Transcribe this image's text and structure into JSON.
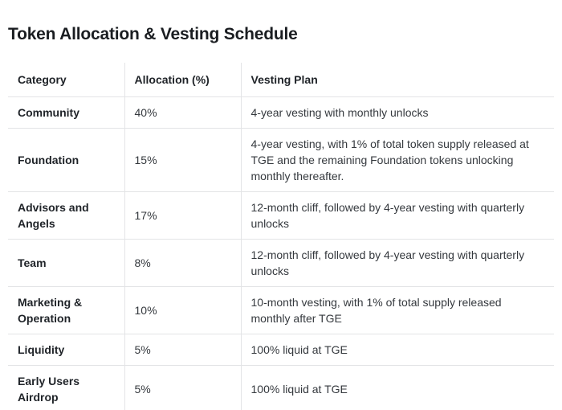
{
  "page": {
    "title": "Token Allocation & Vesting Schedule"
  },
  "table": {
    "columns": {
      "category": "Category",
      "allocation": "Allocation (%)",
      "vesting": "Vesting Plan"
    },
    "rows": [
      {
        "category": "Community",
        "allocation": "40%",
        "vesting": "4-year vesting with monthly unlocks"
      },
      {
        "category": "Foundation",
        "allocation": "15%",
        "vesting": "4-year vesting, with 1% of total token supply released at TGE and the remaining Foundation tokens unlocking monthly thereafter."
      },
      {
        "category": "Advisors and Angels",
        "allocation": "17%",
        "vesting": "12-month cliff, followed by 4-year vesting with quarterly unlocks"
      },
      {
        "category": "Team",
        "allocation": "8%",
        "vesting": "12-month cliff, followed by 4-year vesting with quarterly unlocks"
      },
      {
        "category": "Marketing & Operation",
        "allocation": "10%",
        "vesting": "10-month vesting, with 1% of total supply released monthly after TGE"
      },
      {
        "category": "Liquidity",
        "allocation": "5%",
        "vesting": "100% liquid at TGE"
      },
      {
        "category": "Early Users Airdrop",
        "allocation": "5%",
        "vesting": "100% liquid at TGE"
      }
    ]
  },
  "colors": {
    "background": "#ffffff",
    "title_text": "#1a1d21",
    "heading_text": "#1f2328",
    "body_text": "#35393e",
    "divider": "#e3e4e6"
  }
}
